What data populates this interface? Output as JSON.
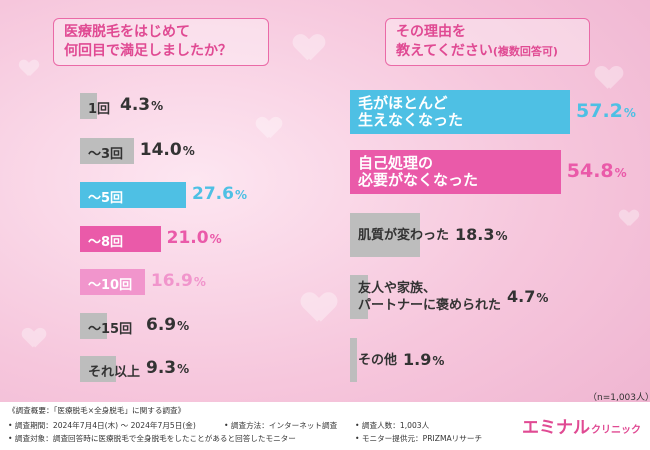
{
  "q1": {
    "line1": "医療脱毛をはじめて",
    "line2": "何回目で満足しましたか？"
  },
  "q2": {
    "line1": "その理由を",
    "line2": "教えてください",
    "line2_small": "(複数回答可)"
  },
  "chart_data": [
    {
      "type": "bar",
      "orientation": "horizontal",
      "categories": [
        "1回",
        "〜3回",
        "〜5回",
        "〜8回",
        "〜10回",
        "〜15回",
        "それ以上"
      ],
      "values": [
        4.3,
        14.0,
        27.6,
        21.0,
        16.9,
        6.9,
        9.3
      ],
      "value_labels": [
        {
          "num": "4.3",
          "pct": "%"
        },
        {
          "num": "14.0",
          "pct": "%"
        },
        {
          "num": "27.6",
          "pct": "%"
        },
        {
          "num": "21.0",
          "pct": "%"
        },
        {
          "num": "16.9",
          "pct": "%"
        },
        {
          "num": "6.9",
          "pct": "%"
        },
        {
          "num": "9.3",
          "pct": "%"
        }
      ],
      "colors": [
        "#bdbdbd",
        "#bdbdbd",
        "#4ec0e4",
        "#ea5aa9",
        "#f195cc",
        "#bdbdbd",
        "#bdbdbd"
      ],
      "unit": "%"
    },
    {
      "type": "bar",
      "orientation": "horizontal",
      "categories": [
        [
          "毛がほとんど",
          "生えなくなった"
        ],
        [
          "自己処理の",
          "必要がなくなった"
        ],
        [
          "肌質が変わった"
        ],
        [
          "友人や家族、",
          "パートナーに褒められた"
        ],
        [
          "その他"
        ]
      ],
      "values": [
        57.2,
        54.8,
        18.3,
        4.7,
        1.9
      ],
      "value_labels": [
        {
          "num": "57.2",
          "pct": "%"
        },
        {
          "num": "54.8",
          "pct": "%"
        },
        {
          "num": "18.3",
          "pct": "%"
        },
        {
          "num": "4.7",
          "pct": "%"
        },
        {
          "num": "1.9",
          "pct": "%"
        }
      ],
      "colors": [
        "#4ec0e4",
        "#ea5aa9",
        "#bdbdbd",
        "#bdbdbd",
        "#bdbdbd"
      ],
      "unit": "%"
    }
  ],
  "n_note": "（n=1,003人）",
  "footer": {
    "line1a": "《調査概要：「医療脱毛×全身脱毛」に関する調査》",
    "line2a": "• 調査期間：2024年7月4日(木) 〜 2024年7月5日(金)",
    "line2b": "• 調査方法：インターネット調査",
    "line2c": "• 調査人数：1,003人",
    "line3a": "• 調査対象：調査回答時に医療脱毛で全身脱毛をしたことがあると回答したモニター",
    "line3b": "• モニター提供元：PRIZMAリサーチ"
  },
  "brand": {
    "main": "エミナル",
    "sub": "クリニック"
  }
}
